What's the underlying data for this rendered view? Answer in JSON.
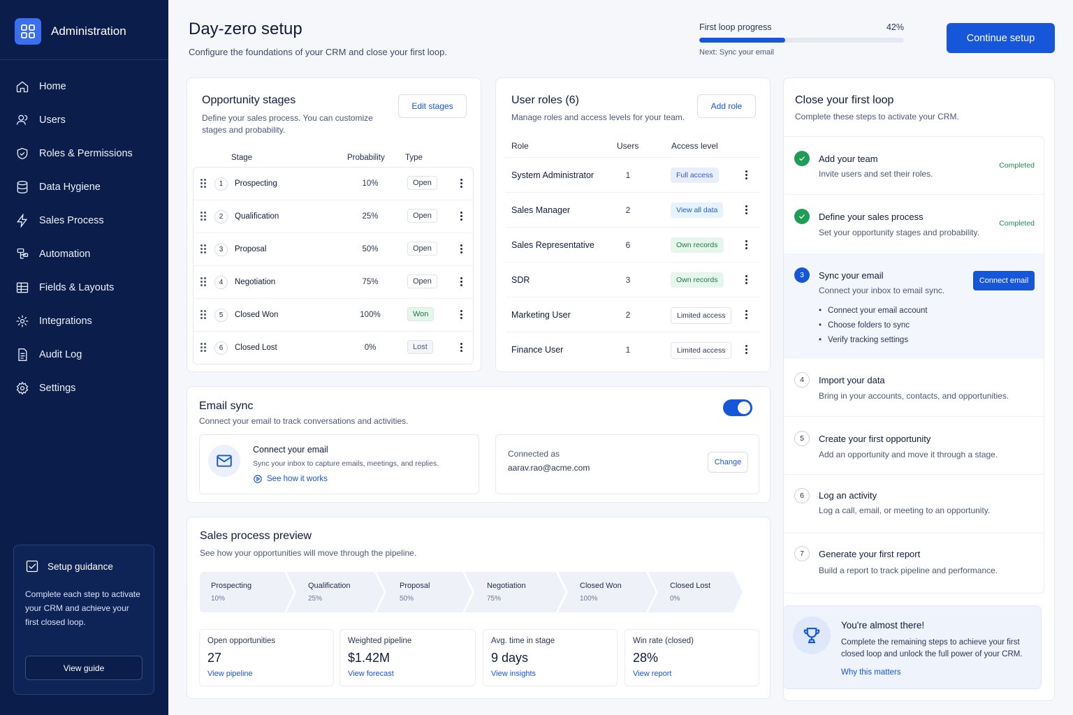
{
  "sidebar": {
    "title": "Administration",
    "items": [
      {
        "label": "Home",
        "icon": "home-icon"
      },
      {
        "label": "Users",
        "icon": "users-icon"
      },
      {
        "label": "Roles & Permissions",
        "icon": "shield-icon"
      },
      {
        "label": "Data Hygiene",
        "icon": "database-icon"
      },
      {
        "label": "Sales Process",
        "icon": "bolt-icon"
      },
      {
        "label": "Automation",
        "icon": "automation-icon"
      },
      {
        "label": "Fields & Layouts",
        "icon": "grid-icon"
      },
      {
        "label": "Integrations",
        "icon": "integrations-icon"
      },
      {
        "label": "Audit Log",
        "icon": "document-icon"
      },
      {
        "label": "Settings",
        "icon": "gear-icon"
      }
    ],
    "guide": {
      "title": "Setup guidance",
      "text": "Complete each step to activate your CRM and achieve your first closed loop.",
      "button": "View guide"
    }
  },
  "header": {
    "title": "Day-zero setup",
    "subtitle": "Configure the foundations of your CRM and close your first loop.",
    "progress_label": "First loop progress",
    "progress_value": "42%",
    "progress_fraction": 0.42,
    "next": "Next: Sync your email",
    "continue": "Continue setup"
  },
  "stages": {
    "title": "Opportunity stages",
    "subtitle": "Define your sales process. You can customize stages and probability.",
    "edit": "Edit stages",
    "columns": {
      "stage": "Stage",
      "probability": "Probability",
      "type": "Type"
    },
    "rows": [
      {
        "n": "1",
        "name": "Prospecting",
        "prob": "10%",
        "type": "Open"
      },
      {
        "n": "2",
        "name": "Qualification",
        "prob": "25%",
        "type": "Open"
      },
      {
        "n": "3",
        "name": "Proposal",
        "prob": "50%",
        "type": "Open"
      },
      {
        "n": "4",
        "name": "Negotiation",
        "prob": "75%",
        "type": "Open"
      },
      {
        "n": "5",
        "name": "Closed Won",
        "prob": "100%",
        "type": "Won"
      },
      {
        "n": "6",
        "name": "Closed Lost",
        "prob": "0%",
        "type": "Lost"
      }
    ]
  },
  "roles": {
    "title": "User roles (6)",
    "subtitle": "Manage roles and access levels for your team.",
    "add": "Add role",
    "columns": {
      "role": "Role",
      "users": "Users",
      "access": "Access level"
    },
    "rows": [
      {
        "name": "System Administrator",
        "users": "1",
        "access": "Full access"
      },
      {
        "name": "Sales Manager",
        "users": "2",
        "access": "View all data"
      },
      {
        "name": "Sales Representative",
        "users": "6",
        "access": "Own records"
      },
      {
        "name": "SDR",
        "users": "3",
        "access": "Own records"
      },
      {
        "name": "Marketing User",
        "users": "2",
        "access": "Limited access"
      },
      {
        "name": "Finance User",
        "users": "1",
        "access": "Limited access"
      }
    ]
  },
  "email": {
    "title": "Email sync",
    "subtitle": "Connect your email to track conversations and activities.",
    "connect_title": "Connect your email",
    "connect_desc": "Sync your inbox to capture emails, meetings, and replies.",
    "see_how": "See how it works",
    "connected_as_label": "Connected as",
    "connected_as": "aarav.rao@acme.com",
    "change": "Change"
  },
  "pipeline": {
    "title": "Sales process preview",
    "subtitle": "See how your opportunities will move through the pipeline.",
    "stages": [
      {
        "name": "Prospecting",
        "pct": "10%"
      },
      {
        "name": "Qualification",
        "pct": "25%"
      },
      {
        "name": "Proposal",
        "pct": "50%"
      },
      {
        "name": "Negotiation",
        "pct": "75%"
      },
      {
        "name": "Closed Won",
        "pct": "100%"
      },
      {
        "name": "Closed Lost",
        "pct": "0%"
      }
    ],
    "metrics": [
      {
        "label": "Open opportunities",
        "value": "27",
        "link": "View pipeline"
      },
      {
        "label": "Weighted pipeline",
        "value": "$1.42M",
        "link": "View forecast"
      },
      {
        "label": "Avg. time in stage",
        "value": "9 days",
        "link": "View insights"
      },
      {
        "label": "Win rate (closed)",
        "value": "28%",
        "link": "View report"
      }
    ]
  },
  "loop": {
    "title": "Close your first loop",
    "subtitle": "Complete these steps to activate your CRM.",
    "steps": [
      {
        "n": "1",
        "title": "Add your team",
        "desc": "Invite users and set their roles.",
        "status": "Completed"
      },
      {
        "n": "2",
        "title": "Define your sales process",
        "desc": "Set your opportunity stages and probability.",
        "status": "Completed"
      },
      {
        "n": "3",
        "title": "Sync your email",
        "desc": "Connect your inbox to email sync.",
        "button": "Connect email",
        "bullets": [
          "Connect your email account",
          "Choose folders to sync",
          "Verify tracking settings"
        ]
      },
      {
        "n": "4",
        "title": "Import your data",
        "desc": "Bring in your accounts, contacts, and opportunities."
      },
      {
        "n": "5",
        "title": "Create your first opportunity",
        "desc": "Add an opportunity and move it through a stage."
      },
      {
        "n": "6",
        "title": "Log an activity",
        "desc": "Log a call, email, or meeting to an opportunity."
      },
      {
        "n": "7",
        "title": "Generate your first report",
        "desc": "Build a report to track pipeline and performance."
      }
    ]
  },
  "almost": {
    "title": "You're almost there!",
    "text": "Complete the remaining steps to achieve your first closed loop and unlock the full power of your CRM.",
    "link": "Why this matters"
  }
}
